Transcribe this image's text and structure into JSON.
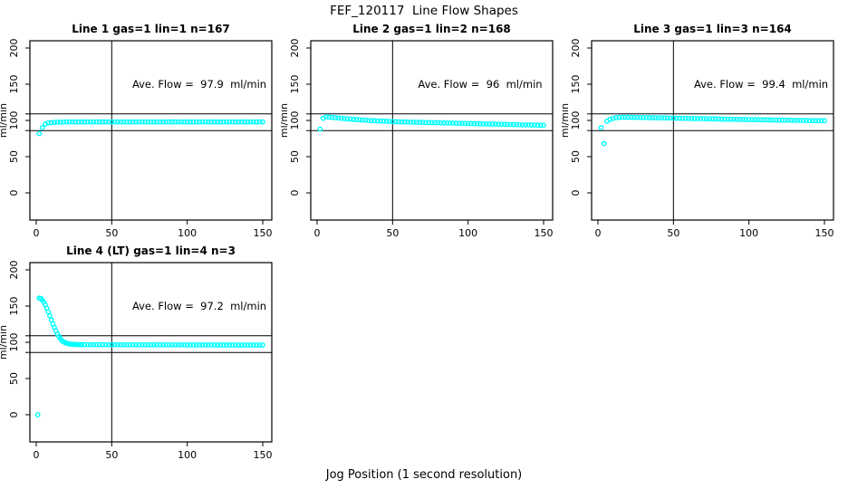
{
  "header": {
    "title": "FEF_120117  Line Flow Shapes"
  },
  "footer": {
    "xlabel": "Jog Position (1 second resolution)"
  },
  "style": {
    "point_color": "#00FFFF",
    "axis_color": "#000000",
    "background": "#FFFFFF"
  },
  "chart_data": [
    {
      "type": "scatter",
      "title": "Line 1 gas=1 lin=1 n=167",
      "annotation": "Ave. Flow =  97.9  ml/min",
      "avg_flow_ml_min": 97.9,
      "ylabel": "ml/min",
      "xlim": [
        0,
        150
      ],
      "ylim": [
        0,
        200
      ],
      "x_ticks": [
        0,
        50,
        100,
        150
      ],
      "y_ticks": [
        0,
        50,
        100,
        150,
        200
      ],
      "ref_lines_y": [
        109,
        86
      ],
      "crosshair_x": 50,
      "grid": false,
      "points": [
        [
          2,
          82
        ],
        [
          4,
          90
        ],
        [
          6,
          95
        ],
        [
          8,
          96.5
        ],
        [
          10,
          97
        ],
        [
          12,
          97.3
        ],
        [
          14,
          97.5
        ],
        [
          16,
          97.7
        ],
        [
          18,
          97.8
        ],
        [
          20,
          97.9
        ],
        [
          22,
          98
        ],
        [
          24,
          97.8
        ],
        [
          26,
          97.9
        ],
        [
          28,
          98
        ],
        [
          30,
          97.9
        ],
        [
          32,
          97.9
        ],
        [
          34,
          98
        ],
        [
          36,
          97.8
        ],
        [
          38,
          97.9
        ],
        [
          40,
          98
        ],
        [
          42,
          97.9
        ],
        [
          44,
          97.9
        ],
        [
          46,
          98
        ],
        [
          48,
          97.8
        ],
        [
          50,
          97.9
        ],
        [
          52,
          98
        ],
        [
          54,
          97.9
        ],
        [
          56,
          97.9
        ],
        [
          58,
          98
        ],
        [
          60,
          97.8
        ],
        [
          62,
          97.9
        ],
        [
          64,
          98
        ],
        [
          66,
          97.9
        ],
        [
          68,
          97.9
        ],
        [
          70,
          98
        ],
        [
          72,
          97.8
        ],
        [
          74,
          97.9
        ],
        [
          76,
          98
        ],
        [
          78,
          97.9
        ],
        [
          80,
          97.9
        ],
        [
          82,
          98
        ],
        [
          84,
          97.8
        ],
        [
          86,
          97.9
        ],
        [
          88,
          98
        ],
        [
          90,
          97.9
        ],
        [
          92,
          97.9
        ],
        [
          94,
          98
        ],
        [
          96,
          97.8
        ],
        [
          98,
          97.9
        ],
        [
          100,
          98
        ],
        [
          102,
          97.9
        ],
        [
          104,
          97.9
        ],
        [
          106,
          98
        ],
        [
          108,
          97.8
        ],
        [
          110,
          97.9
        ],
        [
          112,
          98
        ],
        [
          114,
          97.9
        ],
        [
          116,
          97.9
        ],
        [
          118,
          98
        ],
        [
          120,
          97.8
        ],
        [
          122,
          97.9
        ],
        [
          124,
          98
        ],
        [
          126,
          97.9
        ],
        [
          128,
          97.9
        ],
        [
          130,
          98
        ],
        [
          132,
          97.8
        ],
        [
          134,
          97.9
        ],
        [
          136,
          98
        ],
        [
          138,
          97.9
        ],
        [
          140,
          97.9
        ],
        [
          142,
          98
        ],
        [
          144,
          97.8
        ],
        [
          146,
          97.9
        ],
        [
          148,
          98
        ],
        [
          150,
          97.9
        ]
      ]
    },
    {
      "type": "scatter",
      "title": "Line 2 gas=1 lin=2 n=168",
      "annotation": "Ave. Flow =  96  ml/min",
      "avg_flow_ml_min": 96,
      "ylabel": "ml/min",
      "xlim": [
        0,
        150
      ],
      "ylim": [
        0,
        200
      ],
      "x_ticks": [
        0,
        50,
        100,
        150
      ],
      "y_ticks": [
        0,
        50,
        100,
        150,
        200
      ],
      "ref_lines_y": [
        109,
        86
      ],
      "crosshair_x": 50,
      "grid": false,
      "points": [
        [
          2,
          88
        ],
        [
          4,
          103
        ],
        [
          6,
          105
        ],
        [
          8,
          104.6
        ],
        [
          10,
          104.2
        ],
        [
          12,
          103.8
        ],
        [
          14,
          103.4
        ],
        [
          16,
          103
        ],
        [
          18,
          102.6
        ],
        [
          20,
          102.2
        ],
        [
          22,
          101.8
        ],
        [
          24,
          101.5
        ],
        [
          26,
          101.2
        ],
        [
          28,
          100.9
        ],
        [
          30,
          100.6
        ],
        [
          32,
          100.3
        ],
        [
          34,
          100
        ],
        [
          36,
          99.8
        ],
        [
          38,
          99.6
        ],
        [
          40,
          99.4
        ],
        [
          42,
          99.2
        ],
        [
          44,
          99
        ],
        [
          46,
          98.8
        ],
        [
          48,
          98.6
        ],
        [
          50,
          98.4
        ],
        [
          52,
          98.2
        ],
        [
          54,
          98.1
        ],
        [
          56,
          98
        ],
        [
          58,
          97.9
        ],
        [
          60,
          97.8
        ],
        [
          62,
          97.7
        ],
        [
          64,
          97.6
        ],
        [
          66,
          97.5
        ],
        [
          68,
          97.4
        ],
        [
          70,
          97.3
        ],
        [
          72,
          97.2
        ],
        [
          74,
          97.1
        ],
        [
          76,
          97
        ],
        [
          78,
          96.9
        ],
        [
          80,
          96.8
        ],
        [
          82,
          96.7
        ],
        [
          84,
          96.6
        ],
        [
          86,
          96.5
        ],
        [
          88,
          96.4
        ],
        [
          90,
          96.3
        ],
        [
          92,
          96.2
        ],
        [
          94,
          96.1
        ],
        [
          96,
          96
        ],
        [
          98,
          95.9
        ],
        [
          100,
          95.8
        ],
        [
          102,
          95.7
        ],
        [
          104,
          95.6
        ],
        [
          106,
          95.5
        ],
        [
          108,
          95.4
        ],
        [
          110,
          95.3
        ],
        [
          112,
          95.2
        ],
        [
          114,
          95.1
        ],
        [
          116,
          95
        ],
        [
          118,
          94.9
        ],
        [
          120,
          94.8
        ],
        [
          122,
          94.7
        ],
        [
          124,
          94.6
        ],
        [
          126,
          94.5
        ],
        [
          128,
          94.4
        ],
        [
          130,
          94.3
        ],
        [
          132,
          94.2
        ],
        [
          134,
          94.1
        ],
        [
          136,
          94
        ],
        [
          138,
          93.9
        ],
        [
          140,
          93.8
        ],
        [
          142,
          93.7
        ],
        [
          144,
          93.6
        ],
        [
          146,
          93.5
        ],
        [
          148,
          93.4
        ],
        [
          150,
          93.3
        ]
      ]
    },
    {
      "type": "scatter",
      "title": "Line 3 gas=1 lin=3 n=164",
      "annotation": "Ave. Flow =  99.4  ml/min",
      "avg_flow_ml_min": 99.4,
      "ylabel": "ml/min",
      "xlim": [
        0,
        150
      ],
      "ylim": [
        0,
        200
      ],
      "x_ticks": [
        0,
        50,
        100,
        150
      ],
      "y_ticks": [
        0,
        50,
        100,
        150,
        200
      ],
      "ref_lines_y": [
        109,
        86
      ],
      "crosshair_x": 50,
      "grid": false,
      "points": [
        [
          2,
          90
        ],
        [
          4,
          68
        ],
        [
          6,
          99
        ],
        [
          8,
          101.5
        ],
        [
          10,
          103
        ],
        [
          12,
          103.8
        ],
        [
          14,
          104.3
        ],
        [
          16,
          104.5
        ],
        [
          18,
          104.5
        ],
        [
          20,
          104.4
        ],
        [
          22,
          104.3
        ],
        [
          24,
          104.2
        ],
        [
          26,
          104.1
        ],
        [
          28,
          104.1
        ],
        [
          30,
          104
        ],
        [
          32,
          103.9
        ],
        [
          34,
          103.8
        ],
        [
          36,
          103.8
        ],
        [
          38,
          103.7
        ],
        [
          40,
          103.6
        ],
        [
          42,
          103.5
        ],
        [
          44,
          103.5
        ],
        [
          46,
          103.4
        ],
        [
          48,
          103.3
        ],
        [
          50,
          103.2
        ],
        [
          52,
          103.1
        ],
        [
          54,
          103
        ],
        [
          56,
          102.9
        ],
        [
          58,
          102.9
        ],
        [
          60,
          102.8
        ],
        [
          62,
          102.7
        ],
        [
          64,
          102.6
        ],
        [
          66,
          102.5
        ],
        [
          68,
          102.5
        ],
        [
          70,
          102.4
        ],
        [
          72,
          102.3
        ],
        [
          74,
          102.2
        ],
        [
          76,
          102.1
        ],
        [
          78,
          102.1
        ],
        [
          80,
          102
        ],
        [
          82,
          101.9
        ],
        [
          84,
          101.8
        ],
        [
          86,
          101.7
        ],
        [
          88,
          101.7
        ],
        [
          90,
          101.6
        ],
        [
          92,
          101.5
        ],
        [
          94,
          101.4
        ],
        [
          96,
          101.3
        ],
        [
          98,
          101.3
        ],
        [
          100,
          101.2
        ],
        [
          102,
          101.1
        ],
        [
          104,
          101
        ],
        [
          106,
          101
        ],
        [
          108,
          100.9
        ],
        [
          110,
          100.8
        ],
        [
          112,
          100.8
        ],
        [
          114,
          100.7
        ],
        [
          116,
          100.6
        ],
        [
          118,
          100.6
        ],
        [
          120,
          100.5
        ],
        [
          122,
          100.4
        ],
        [
          124,
          100.4
        ],
        [
          126,
          100.3
        ],
        [
          128,
          100.2
        ],
        [
          130,
          100.2
        ],
        [
          132,
          100.1
        ],
        [
          134,
          100
        ],
        [
          136,
          100
        ],
        [
          138,
          99.9
        ],
        [
          140,
          99.8
        ],
        [
          142,
          99.8
        ],
        [
          144,
          99.7
        ],
        [
          146,
          99.7
        ],
        [
          148,
          99.6
        ],
        [
          150,
          99.6
        ]
      ]
    },
    {
      "type": "scatter",
      "title": "Line 4 (LT) gas=1 lin=4 n=3",
      "annotation": "Ave. Flow =  97.2  ml/min",
      "avg_flow_ml_min": 97.2,
      "ylabel": "ml/min",
      "xlim": [
        0,
        150
      ],
      "ylim": [
        0,
        200
      ],
      "x_ticks": [
        0,
        50,
        100,
        150
      ],
      "y_ticks": [
        0,
        50,
        100,
        150,
        200
      ],
      "ref_lines_y": [
        109,
        86
      ],
      "crosshair_x": 50,
      "grid": false,
      "points": [
        [
          1,
          0
        ],
        [
          2,
          161
        ],
        [
          3,
          160.5
        ],
        [
          4,
          158.5
        ],
        [
          5,
          155.5
        ],
        [
          6,
          151.5
        ],
        [
          7,
          147
        ],
        [
          8,
          142
        ],
        [
          9,
          136.5
        ],
        [
          10,
          131
        ],
        [
          11,
          125.5
        ],
        [
          12,
          120.5
        ],
        [
          13,
          116
        ],
        [
          14,
          111.5
        ],
        [
          15,
          108
        ],
        [
          16,
          105
        ],
        [
          17,
          102.5
        ],
        [
          18,
          100.8
        ],
        [
          19,
          99.6
        ],
        [
          20,
          98.8
        ],
        [
          21,
          98.2
        ],
        [
          22,
          97.8
        ],
        [
          23,
          97.5
        ],
        [
          24,
          97.3
        ],
        [
          25,
          97.1
        ],
        [
          26,
          97
        ],
        [
          27,
          96.9
        ],
        [
          28,
          96.9
        ],
        [
          29,
          96.8
        ],
        [
          30,
          96.8
        ],
        [
          32,
          96.8
        ],
        [
          34,
          96.8
        ],
        [
          36,
          96.7
        ],
        [
          38,
          96.7
        ],
        [
          40,
          96.7
        ],
        [
          42,
          96.8
        ],
        [
          44,
          96.7
        ],
        [
          46,
          96.7
        ],
        [
          48,
          96.6
        ],
        [
          50,
          96.7
        ],
        [
          52,
          96.6
        ],
        [
          54,
          96.7
        ],
        [
          56,
          96.6
        ],
        [
          58,
          96.6
        ],
        [
          60,
          96.5
        ],
        [
          62,
          96.6
        ],
        [
          64,
          96.6
        ],
        [
          66,
          96.5
        ],
        [
          68,
          96.5
        ],
        [
          70,
          96.6
        ],
        [
          72,
          96.5
        ],
        [
          74,
          96.5
        ],
        [
          76,
          96.4
        ],
        [
          78,
          96.5
        ],
        [
          80,
          96.5
        ],
        [
          82,
          96.4
        ],
        [
          84,
          96.4
        ],
        [
          86,
          96.5
        ],
        [
          88,
          96.4
        ],
        [
          90,
          96.4
        ],
        [
          92,
          96.4
        ],
        [
          94,
          96.3
        ],
        [
          96,
          96.4
        ],
        [
          98,
          96.4
        ],
        [
          100,
          96.3
        ],
        [
          102,
          96.3
        ],
        [
          104,
          96.4
        ],
        [
          106,
          96.3
        ],
        [
          108,
          96.3
        ],
        [
          110,
          96.3
        ],
        [
          112,
          96.3
        ],
        [
          114,
          96.4
        ],
        [
          116,
          96.3
        ],
        [
          118,
          96.3
        ],
        [
          120,
          96.2
        ],
        [
          122,
          96.3
        ],
        [
          124,
          96.3
        ],
        [
          126,
          96.2
        ],
        [
          128,
          96.3
        ],
        [
          130,
          96.2
        ],
        [
          132,
          96.3
        ],
        [
          134,
          96.2
        ],
        [
          136,
          96.2
        ],
        [
          138,
          96.3
        ],
        [
          140,
          96.2
        ],
        [
          142,
          96.2
        ],
        [
          144,
          96.3
        ],
        [
          146,
          96.2
        ],
        [
          148,
          96.2
        ],
        [
          150,
          96.2
        ]
      ]
    }
  ]
}
